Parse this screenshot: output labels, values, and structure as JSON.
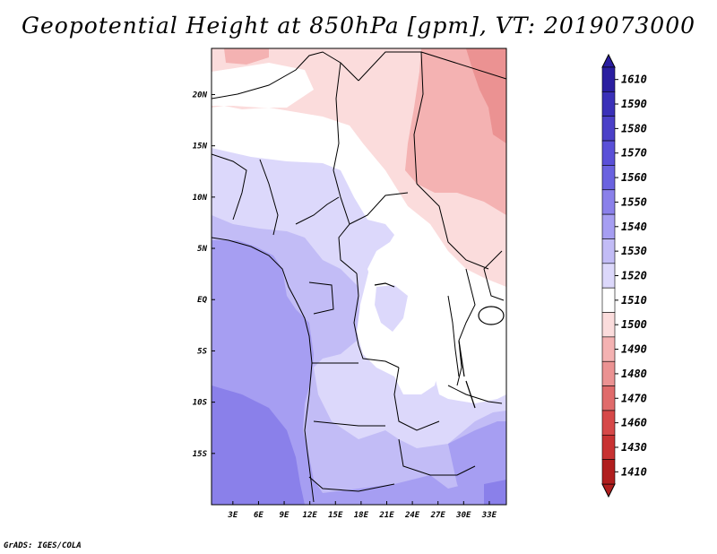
{
  "title": "Geopotential Height at 850hPa [gpm], VT: 2019073000",
  "credit": "GrADS: IGES/COLA",
  "map": {
    "lat_labels": [
      "20N",
      "15N",
      "10N",
      "5N",
      "EQ",
      "5S",
      "10S",
      "15S"
    ],
    "lon_labels": [
      "3E",
      "6E",
      "9E",
      "12E",
      "15E",
      "18E",
      "21E",
      "24E",
      "27E",
      "30E",
      "33E"
    ],
    "lat_range": [
      -20,
      24.5
    ],
    "lon_range": [
      0.5,
      35
    ],
    "ocean_color": "#bdb5f5",
    "land_color": "#ffffff"
  },
  "colorbar": {
    "levels": [
      "1610",
      "1590",
      "1580",
      "1570",
      "1560",
      "1550",
      "1540",
      "1530",
      "1520",
      "1510",
      "1500",
      "1490",
      "1480",
      "1470",
      "1460",
      "1430",
      "1410"
    ],
    "colors": [
      "#2a1ea0",
      "#3a30b8",
      "#4b40c8",
      "#5a50d8",
      "#6a62e0",
      "#8a80ea",
      "#a69ef2",
      "#c2bcf6",
      "#dcd8fb",
      "#ffffff",
      "#fbdcdc",
      "#f4b2b2",
      "#eb9292",
      "#e06b6b",
      "#d64848",
      "#c83232",
      "#b01e1e"
    ]
  }
}
